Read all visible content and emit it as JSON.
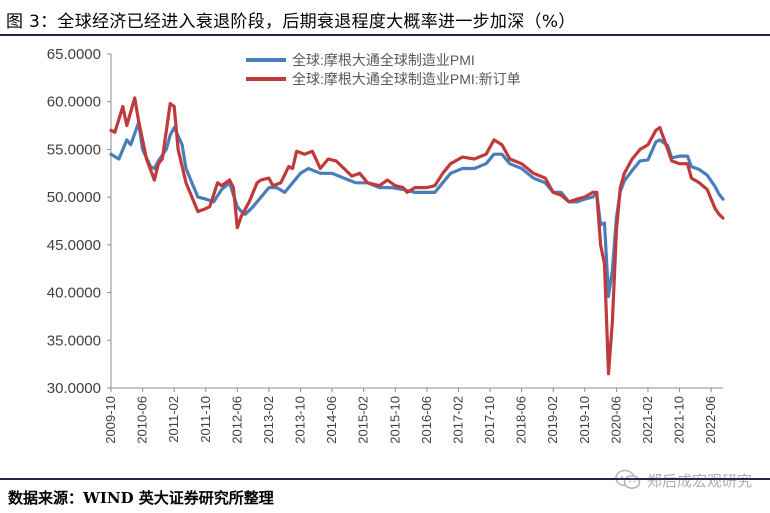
{
  "title": "图 3：全球经济已经进入衰退阶段，后期衰退程度大概率进一步加深（%）",
  "source": "数据来源：WIND  英大证券研究所整理",
  "watermark": {
    "text": "郑后成宏观研究",
    "icon": "wechat-icon"
  },
  "colors": {
    "series_1": "#4a7ebb",
    "series_2": "#c0393b",
    "rule": "#2b2250"
  },
  "chart_data": {
    "type": "line",
    "yticks": [
      "30.0000",
      "35.0000",
      "40.0000",
      "45.0000",
      "50.0000",
      "55.0000",
      "60.0000",
      "65.0000"
    ],
    "ylim": [
      30,
      65
    ],
    "xlim": [
      "2009-10",
      "2022-09"
    ],
    "xticks": [
      "2009-10",
      "2010-06",
      "2011-02",
      "2011-10",
      "2012-06",
      "2013-02",
      "2013-10",
      "2014-06",
      "2015-02",
      "2015-10",
      "2016-06",
      "2017-02",
      "2017-10",
      "2018-06",
      "2019-02",
      "2019-10",
      "2020-06",
      "2021-02",
      "2021-10",
      "2022-06"
    ],
    "legend_position": "top-center",
    "grid": false,
    "series": [
      {
        "name": "全球:摩根大通全球制造业PMI",
        "color": "#4a7ebb",
        "points": [
          [
            "2009-10",
            54.5
          ],
          [
            "2009-12",
            54.0
          ],
          [
            "2010-02",
            56.0
          ],
          [
            "2010-03",
            55.5
          ],
          [
            "2010-05",
            57.8
          ],
          [
            "2010-06",
            55.0
          ],
          [
            "2010-08",
            53.2
          ],
          [
            "2010-09",
            53.0
          ],
          [
            "2010-10",
            53.8
          ],
          [
            "2010-12",
            55.0
          ],
          [
            "2011-01",
            56.5
          ],
          [
            "2011-02",
            57.3
          ],
          [
            "2011-04",
            55.5
          ],
          [
            "2011-05",
            53.0
          ],
          [
            "2011-06",
            52.0
          ],
          [
            "2011-08",
            50.0
          ],
          [
            "2011-10",
            49.8
          ],
          [
            "2011-12",
            49.5
          ],
          [
            "2012-02",
            50.8
          ],
          [
            "2012-04",
            51.5
          ],
          [
            "2012-06",
            49.0
          ],
          [
            "2012-07",
            48.5
          ],
          [
            "2012-08",
            48.2
          ],
          [
            "2012-10",
            49.0
          ],
          [
            "2012-12",
            50.0
          ],
          [
            "2013-02",
            51.0
          ],
          [
            "2013-04",
            51.0
          ],
          [
            "2013-06",
            50.5
          ],
          [
            "2013-08",
            51.5
          ],
          [
            "2013-10",
            52.5
          ],
          [
            "2013-12",
            53.0
          ],
          [
            "2014-03",
            52.5
          ],
          [
            "2014-06",
            52.5
          ],
          [
            "2014-09",
            52.0
          ],
          [
            "2014-12",
            51.5
          ],
          [
            "2015-03",
            51.5
          ],
          [
            "2015-06",
            51.0
          ],
          [
            "2015-09",
            51.0
          ],
          [
            "2015-12",
            50.8
          ],
          [
            "2016-03",
            50.5
          ],
          [
            "2016-06",
            50.5
          ],
          [
            "2016-08",
            50.5
          ],
          [
            "2016-10",
            51.5
          ],
          [
            "2016-12",
            52.5
          ],
          [
            "2017-03",
            53.0
          ],
          [
            "2017-06",
            53.0
          ],
          [
            "2017-09",
            53.5
          ],
          [
            "2017-11",
            54.5
          ],
          [
            "2018-01",
            54.5
          ],
          [
            "2018-03",
            53.5
          ],
          [
            "2018-06",
            53.0
          ],
          [
            "2018-09",
            52.0
          ],
          [
            "2018-12",
            51.5
          ],
          [
            "2019-02",
            50.5
          ],
          [
            "2019-04",
            50.5
          ],
          [
            "2019-06",
            49.5
          ],
          [
            "2019-08",
            49.5
          ],
          [
            "2019-10",
            49.8
          ],
          [
            "2019-12",
            50.0
          ],
          [
            "2020-01",
            50.4
          ],
          [
            "2020-02",
            47.1
          ],
          [
            "2020-03",
            47.3
          ],
          [
            "2020-04",
            39.6
          ],
          [
            "2020-05",
            42.4
          ],
          [
            "2020-06",
            47.8
          ],
          [
            "2020-07",
            50.6
          ],
          [
            "2020-08",
            51.7
          ],
          [
            "2020-10",
            52.8
          ],
          [
            "2020-12",
            53.8
          ],
          [
            "2021-02",
            53.9
          ],
          [
            "2021-04",
            55.8
          ],
          [
            "2021-05",
            56.0
          ],
          [
            "2021-07",
            55.4
          ],
          [
            "2021-08",
            54.1
          ],
          [
            "2021-10",
            54.3
          ],
          [
            "2021-12",
            54.3
          ],
          [
            "2022-01",
            53.2
          ],
          [
            "2022-03",
            52.9
          ],
          [
            "2022-05",
            52.3
          ],
          [
            "2022-07",
            51.1
          ],
          [
            "2022-08",
            50.3
          ],
          [
            "2022-09",
            49.8
          ]
        ]
      },
      {
        "name": "全球:摩根大通全球制造业PMI:新订单",
        "color": "#c0393b",
        "points": [
          [
            "2009-10",
            57.0
          ],
          [
            "2009-11",
            56.8
          ],
          [
            "2010-01",
            59.5
          ],
          [
            "2010-02",
            57.5
          ],
          [
            "2010-04",
            60.4
          ],
          [
            "2010-05",
            58.0
          ],
          [
            "2010-07",
            54.0
          ],
          [
            "2010-09",
            51.8
          ],
          [
            "2010-10",
            53.5
          ],
          [
            "2010-11",
            54.0
          ],
          [
            "2011-01",
            59.8
          ],
          [
            "2011-02",
            59.5
          ],
          [
            "2011-03",
            55.0
          ],
          [
            "2011-05",
            51.5
          ],
          [
            "2011-07",
            49.5
          ],
          [
            "2011-08",
            48.5
          ],
          [
            "2011-10",
            48.8
          ],
          [
            "2011-11",
            49.0
          ],
          [
            "2012-01",
            51.5
          ],
          [
            "2012-02",
            51.2
          ],
          [
            "2012-04",
            51.8
          ],
          [
            "2012-05",
            51.0
          ],
          [
            "2012-06",
            46.8
          ],
          [
            "2012-07",
            48.0
          ],
          [
            "2012-09",
            49.5
          ],
          [
            "2012-11",
            51.5
          ],
          [
            "2012-12",
            51.8
          ],
          [
            "2013-02",
            52.0
          ],
          [
            "2013-03",
            51.2
          ],
          [
            "2013-05",
            51.5
          ],
          [
            "2013-07",
            53.2
          ],
          [
            "2013-08",
            53.0
          ],
          [
            "2013-09",
            54.8
          ],
          [
            "2013-11",
            54.5
          ],
          [
            "2014-01",
            54.8
          ],
          [
            "2014-03",
            53.0
          ],
          [
            "2014-05",
            54.0
          ],
          [
            "2014-07",
            53.8
          ],
          [
            "2014-09",
            53.0
          ],
          [
            "2014-11",
            52.2
          ],
          [
            "2015-01",
            52.5
          ],
          [
            "2015-03",
            51.5
          ],
          [
            "2015-06",
            51.2
          ],
          [
            "2015-08",
            51.8
          ],
          [
            "2015-10",
            51.2
          ],
          [
            "2015-12",
            51.0
          ],
          [
            "2016-01",
            50.5
          ],
          [
            "2016-03",
            51.0
          ],
          [
            "2016-06",
            51.0
          ],
          [
            "2016-08",
            51.2
          ],
          [
            "2016-10",
            52.5
          ],
          [
            "2016-12",
            53.5
          ],
          [
            "2017-03",
            54.2
          ],
          [
            "2017-06",
            54.0
          ],
          [
            "2017-09",
            54.5
          ],
          [
            "2017-11",
            56.0
          ],
          [
            "2018-01",
            55.5
          ],
          [
            "2018-03",
            54.0
          ],
          [
            "2018-06",
            53.5
          ],
          [
            "2018-09",
            52.5
          ],
          [
            "2018-12",
            52.0
          ],
          [
            "2019-02",
            50.5
          ],
          [
            "2019-04",
            50.2
          ],
          [
            "2019-06",
            49.5
          ],
          [
            "2019-08",
            49.8
          ],
          [
            "2019-10",
            50.0
          ],
          [
            "2019-12",
            50.5
          ],
          [
            "2020-01",
            50.5
          ],
          [
            "2020-02",
            45.0
          ],
          [
            "2020-03",
            43.0
          ],
          [
            "2020-04",
            31.5
          ],
          [
            "2020-05",
            37.0
          ],
          [
            "2020-06",
            46.5
          ],
          [
            "2020-07",
            51.0
          ],
          [
            "2020-08",
            52.5
          ],
          [
            "2020-10",
            54.0
          ],
          [
            "2020-12",
            55.0
          ],
          [
            "2021-02",
            55.5
          ],
          [
            "2021-04",
            57.0
          ],
          [
            "2021-05",
            57.3
          ],
          [
            "2021-07",
            55.0
          ],
          [
            "2021-08",
            53.8
          ],
          [
            "2021-10",
            53.5
          ],
          [
            "2021-12",
            53.5
          ],
          [
            "2022-01",
            52.0
          ],
          [
            "2022-03",
            51.5
          ],
          [
            "2022-05",
            50.8
          ],
          [
            "2022-07",
            48.8
          ],
          [
            "2022-08",
            48.2
          ],
          [
            "2022-09",
            47.8
          ]
        ]
      }
    ]
  }
}
